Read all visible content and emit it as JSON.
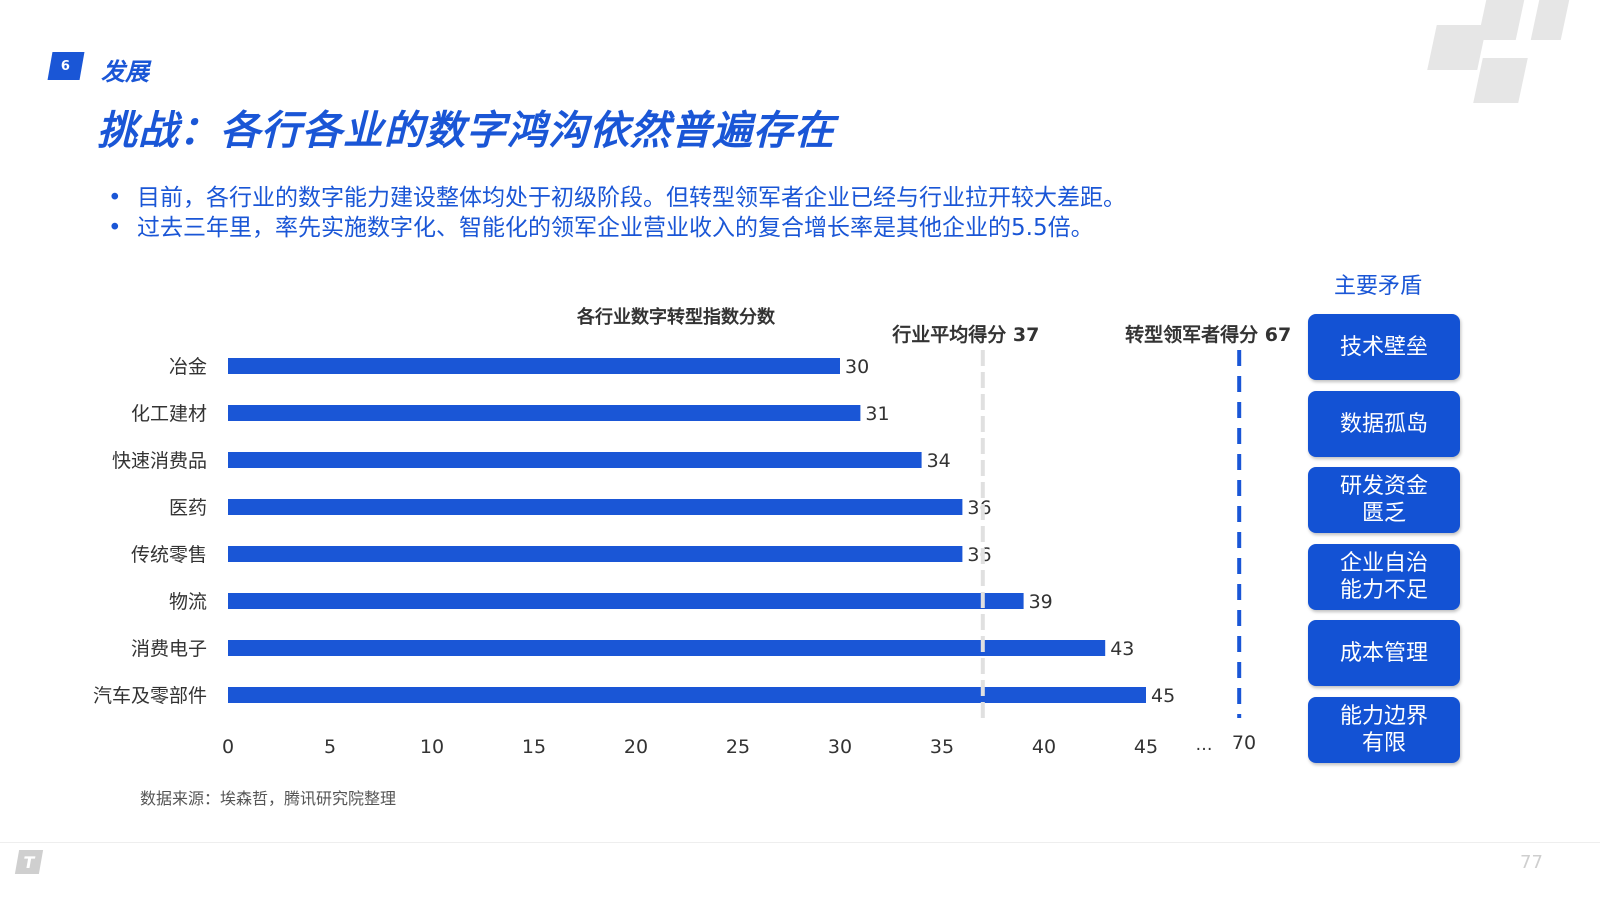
{
  "header": {
    "section_number": "6",
    "section_label": "发展",
    "title": "挑战：各行各业的数字鸿沟依然普遍存在"
  },
  "bullets": [
    "目前，各行业的数字能力建设整体均处于初级阶段。但转型领军者企业已经与行业拉开较大差距。",
    "过去三年里，率先实施数字化、智能化的领军企业营业收入的复合增长率是其他企业的5.5倍。"
  ],
  "chart_data": {
    "type": "bar",
    "orientation": "horizontal",
    "title": "各行业数字转型指数分数",
    "categories": [
      "冶金",
      "化工建材",
      "快速消费品",
      "医药",
      "传统零售",
      "物流",
      "消费电子",
      "汽车及零部件"
    ],
    "values": [
      30,
      31,
      34,
      36,
      36,
      39,
      43,
      45
    ],
    "data_labels": [
      "30",
      "31",
      "34",
      "36",
      "36",
      "39",
      "43",
      "45"
    ],
    "xlim": [
      0,
      70
    ],
    "x_ticks": [
      "0",
      "5",
      "10",
      "15",
      "20",
      "25",
      "30",
      "35",
      "40",
      "45"
    ],
    "x_break": {
      "ellipsis": "…",
      "end_tick": "70"
    },
    "reference_lines": [
      {
        "label": "行业平均得分 37",
        "value": 37,
        "color": "#e0e0e0",
        "style": "dashed"
      },
      {
        "label": "转型领军者得分 67",
        "value": 67,
        "color": "#1a56d6",
        "style": "dashed"
      }
    ],
    "bar_color": "#1a56d6",
    "grid": false,
    "legend": "none"
  },
  "issues": {
    "title": "主要矛盾",
    "items": [
      "技术壁垒",
      "数据孤岛",
      "研发资金匮乏",
      "企业自治能力不足",
      "成本管理",
      "能力边界有限"
    ]
  },
  "source_note": "数据来源：埃森哲，腾讯研究院整理",
  "footer": {
    "logo": "T",
    "page_number": "77"
  },
  "colors": {
    "accent": "#1a56d6",
    "box": "#1352d4"
  }
}
